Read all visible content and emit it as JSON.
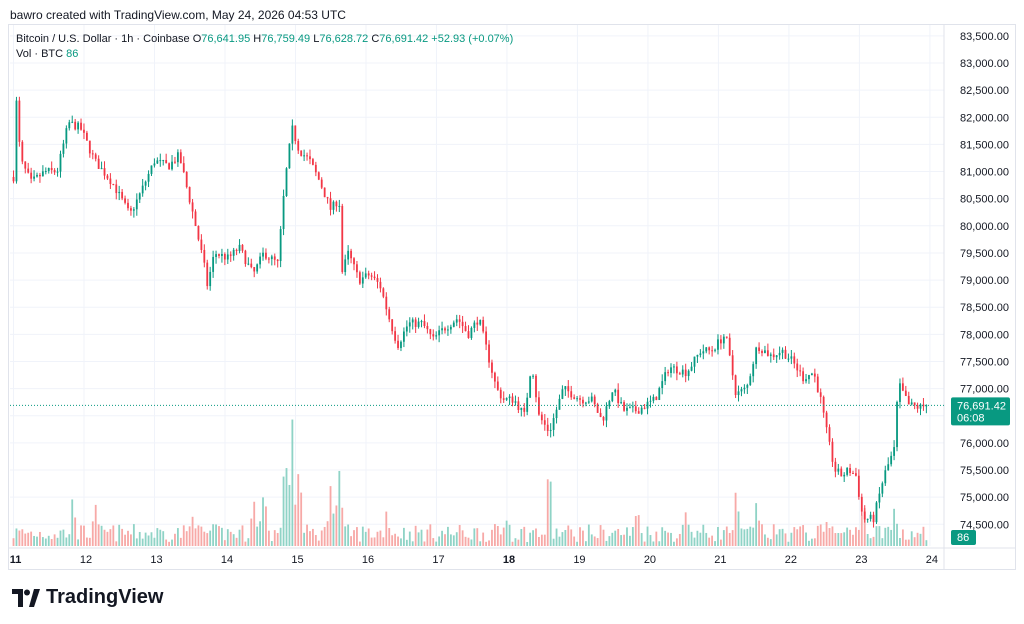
{
  "header": {
    "credit": "bawro created with TradingView.com, May 24, 2026 04:53 UTC"
  },
  "legend": {
    "symbol": "Bitcoin / U.S. Dollar · 1h · Coinbase",
    "o_label": "O",
    "o_value": "76,641.95",
    "h_label": "H",
    "h_value": "76,759.49",
    "l_label": "L",
    "l_value": "76,628.72",
    "c_label": "C",
    "c_value": "76,691.42",
    "change": "+52.93 (+0.07%)",
    "vol_label": "Vol · BTC",
    "vol_value": "86"
  },
  "price_tag": {
    "price": "76,691.42",
    "countdown": "06:08"
  },
  "volume_tag": "86",
  "logo": {
    "text": "TradingView"
  },
  "colors": {
    "up": "#089981",
    "down": "#f23645",
    "up_vol": "#8fd3c6",
    "down_vol": "#f7a9a7",
    "grid": "#f0f3fa"
  },
  "chart_data": {
    "type": "candlestick",
    "symbol": "BTCUSD",
    "interval": "1h",
    "ylim": [
      74100,
      83700
    ],
    "y_ticks": [
      "74,500.00",
      "75,000.00",
      "75,500.00",
      "76,000.00",
      "76,500.00",
      "77,000.00",
      "77,500.00",
      "78,000.00",
      "78,500.00",
      "79,000.00",
      "79,500.00",
      "80,000.00",
      "80,500.00",
      "81,000.00",
      "81,500.00",
      "82,000.00",
      "82,500.00",
      "83,000.00",
      "83,500.00"
    ],
    "y_tick_values": [
      74500,
      75000,
      75500,
      76000,
      76500,
      77000,
      77500,
      78000,
      78500,
      79000,
      79500,
      80000,
      80500,
      81000,
      81500,
      82000,
      82500,
      83000,
      83500
    ],
    "x_ticks": [
      "11",
      "12",
      "13",
      "14",
      "15",
      "16",
      "17",
      "18",
      "19",
      "20",
      "21",
      "22",
      "23",
      "24"
    ],
    "x_tick_days": [
      0,
      1,
      2,
      3,
      4,
      5,
      6,
      7,
      8,
      9,
      10,
      11,
      12,
      13
    ],
    "x_range_days": [
      -0.05,
      13.2
    ],
    "bold_ticks": [
      "11",
      "18"
    ],
    "last_price": 76691.42,
    "price_path": [
      [
        0.0,
        80900
      ],
      [
        0.04,
        82300
      ],
      [
        0.1,
        81200
      ],
      [
        0.25,
        80800
      ],
      [
        0.45,
        81000
      ],
      [
        0.62,
        81000
      ],
      [
        0.78,
        81900
      ],
      [
        0.95,
        81800
      ],
      [
        1.15,
        81200
      ],
      [
        1.4,
        80800
      ],
      [
        1.65,
        80200
      ],
      [
        1.8,
        80600
      ],
      [
        2.0,
        81200
      ],
      [
        2.2,
        81100
      ],
      [
        2.35,
        81300
      ],
      [
        2.55,
        80200
      ],
      [
        2.7,
        79300
      ],
      [
        2.75,
        78900
      ],
      [
        2.85,
        79500
      ],
      [
        3.05,
        79400
      ],
      [
        3.2,
        79600
      ],
      [
        3.4,
        79100
      ],
      [
        3.55,
        79500
      ],
      [
        3.75,
        79300
      ],
      [
        3.85,
        80800
      ],
      [
        3.95,
        81800
      ],
      [
        4.05,
        81400
      ],
      [
        4.2,
        81200
      ],
      [
        4.35,
        80800
      ],
      [
        4.5,
        80300
      ],
      [
        4.62,
        80500
      ],
      [
        4.65,
        79100
      ],
      [
        4.75,
        79500
      ],
      [
        4.9,
        79000
      ],
      [
        5.05,
        79100
      ],
      [
        5.2,
        78900
      ],
      [
        5.35,
        78200
      ],
      [
        5.45,
        77800
      ],
      [
        5.6,
        78200
      ],
      [
        5.8,
        78200
      ],
      [
        5.95,
        77900
      ],
      [
        6.1,
        78100
      ],
      [
        6.3,
        78300
      ],
      [
        6.45,
        78000
      ],
      [
        6.6,
        78300
      ],
      [
        6.85,
        77000
      ],
      [
        6.95,
        76800
      ],
      [
        7.1,
        76800
      ],
      [
        7.25,
        76500
      ],
      [
        7.35,
        77500
      ],
      [
        7.45,
        76500
      ],
      [
        7.6,
        76200
      ],
      [
        7.8,
        77000
      ],
      [
        8.05,
        76800
      ],
      [
        8.2,
        76800
      ],
      [
        8.35,
        76400
      ],
      [
        8.5,
        77000
      ],
      [
        8.65,
        76600
      ],
      [
        8.85,
        76600
      ],
      [
        9.1,
        76800
      ],
      [
        9.3,
        77400
      ],
      [
        9.55,
        77300
      ],
      [
        9.75,
        77700
      ],
      [
        9.9,
        77700
      ],
      [
        10.1,
        78000
      ],
      [
        10.25,
        76900
      ],
      [
        10.4,
        77000
      ],
      [
        10.55,
        77800
      ],
      [
        10.75,
        77600
      ],
      [
        10.9,
        77700
      ],
      [
        11.05,
        77500
      ],
      [
        11.2,
        77200
      ],
      [
        11.35,
        77300
      ],
      [
        11.45,
        76800
      ],
      [
        11.55,
        76100
      ],
      [
        11.65,
        75500
      ],
      [
        11.75,
        75400
      ],
      [
        11.85,
        75500
      ],
      [
        11.95,
        75400
      ],
      [
        12.0,
        75000
      ],
      [
        12.05,
        74600
      ],
      [
        12.2,
        74600
      ],
      [
        12.35,
        75400
      ],
      [
        12.5,
        75900
      ],
      [
        12.55,
        77100
      ],
      [
        12.7,
        76700
      ],
      [
        12.85,
        76650
      ],
      [
        12.95,
        76690
      ]
    ],
    "volume_spikes": [
      [
        0.85,
        0.3
      ],
      [
        1.15,
        0.22
      ],
      [
        2.55,
        0.22
      ],
      [
        3.4,
        0.3
      ],
      [
        3.55,
        0.4
      ],
      [
        3.85,
        0.7
      ],
      [
        3.95,
        1.0
      ],
      [
        4.05,
        0.6
      ],
      [
        4.5,
        0.45
      ],
      [
        4.62,
        0.52
      ],
      [
        5.3,
        0.18
      ],
      [
        7.0,
        0.15
      ],
      [
        7.6,
        0.55
      ],
      [
        8.85,
        0.2
      ],
      [
        9.55,
        0.22
      ],
      [
        10.25,
        0.28
      ],
      [
        10.55,
        0.25
      ],
      [
        11.55,
        0.18
      ],
      [
        12.05,
        0.28
      ],
      [
        12.5,
        0.2
      ]
    ]
  }
}
